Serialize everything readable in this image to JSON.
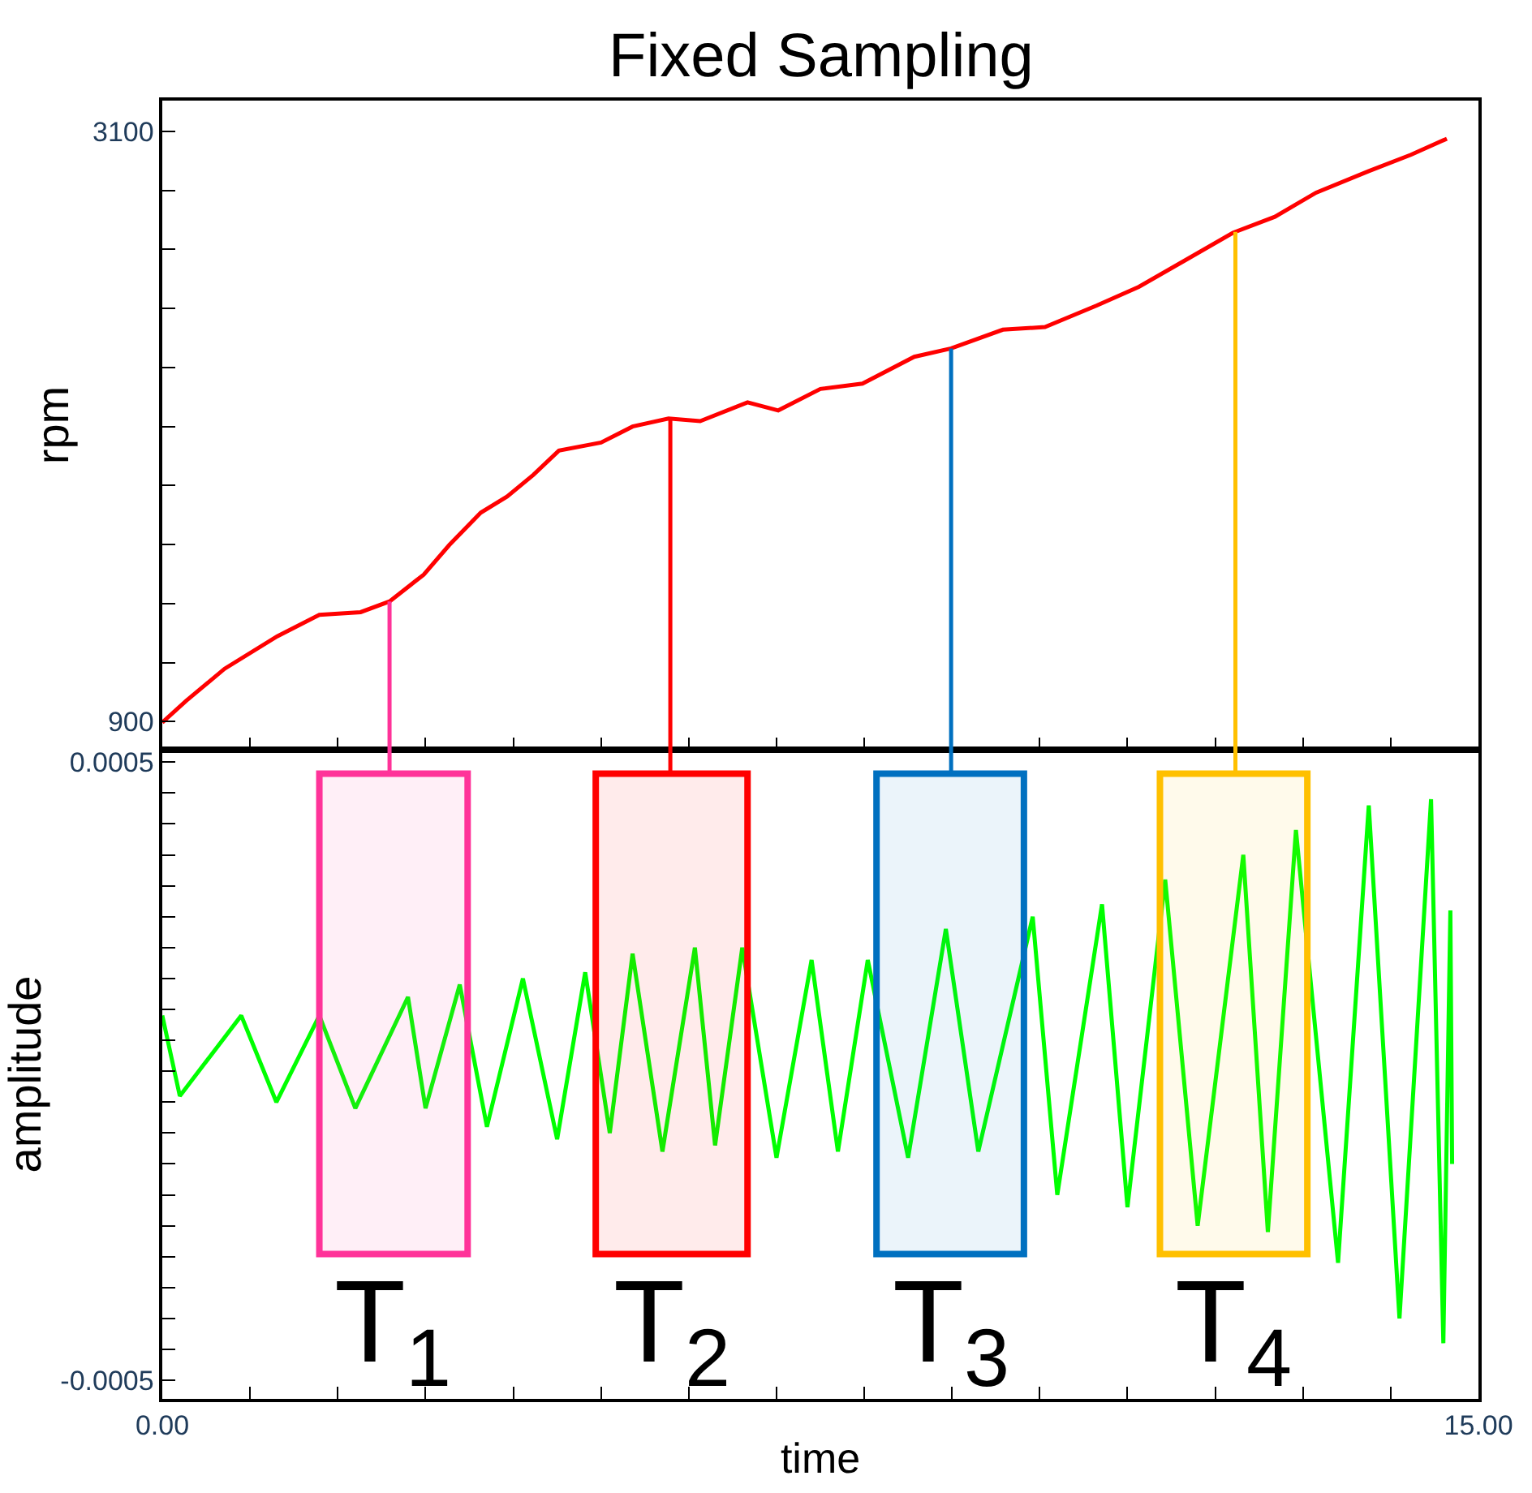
{
  "chart_data": [
    {
      "type": "line",
      "title": "Fixed Sampling",
      "ylabel": "rpm",
      "tick_labels": "y",
      "grid": false,
      "marker": "none",
      "line_style": "solid",
      "xlim": [
        0,
        15
      ],
      "xticks": [
        0,
        1,
        2,
        3,
        4,
        5,
        6,
        7,
        8,
        9,
        10,
        11,
        12,
        13,
        14,
        15
      ],
      "ylim": [
        795,
        3215
      ],
      "yticks": [
        900,
        {
          "value": 1120,
          "label": null
        },
        {
          "value": 1340,
          "label": null
        },
        {
          "value": 1560,
          "label": null
        },
        {
          "value": 1780,
          "label": null
        },
        {
          "value": 2000,
          "label": null
        },
        {
          "value": 2220,
          "label": null
        },
        {
          "value": 2440,
          "label": null
        },
        {
          "value": 2660,
          "label": null
        },
        {
          "value": 2880,
          "label": null
        },
        3100
      ],
      "series": [
        {
          "color": "#ff0000",
          "x": [
            0,
            0.27,
            0.71,
            1.31,
            1.79,
            2.26,
            2.59,
            2.98,
            3.27,
            3.63,
            3.93,
            4.23,
            4.52,
            5.0,
            5.36,
            5.77,
            6.13,
            6.67,
            7.02,
            7.5,
            7.98,
            8.57,
            8.99,
            9.58,
            10.06,
            10.65,
            11.13,
            11.67,
            12.2,
            12.68,
            13.15,
            13.75,
            14.23,
            14.64
          ],
          "values": [
            897,
            977,
            1097,
            1218,
            1298,
            1308,
            1348,
            1448,
            1558,
            1679,
            1739,
            1820,
            1910,
            1940,
            2000,
            2030,
            2020,
            2090,
            2060,
            2140,
            2160,
            2260,
            2291,
            2361,
            2371,
            2451,
            2521,
            2622,
            2722,
            2782,
            2872,
            2952,
            3013,
            3073
          ]
        }
      ],
      "ref_lines": [
        {
          "axis": "x",
          "value": 2.59,
          "color": "#ff3399"
        },
        {
          "axis": "x",
          "value": 5.79,
          "color": "#ff0000"
        },
        {
          "axis": "x",
          "value": 8.99,
          "color": "#0070c0"
        },
        {
          "axis": "x",
          "value": 12.23,
          "color": "#ffc000"
        }
      ]
    },
    {
      "type": "line",
      "xlabel": "time",
      "ylabel": "amplitude",
      "grid": false,
      "marker": "none",
      "line_style": "solid",
      "xlim": [
        0,
        15
      ],
      "xticks": [
        {
          "value": 0,
          "label": "0.00"
        },
        {
          "value": 1,
          "label": null
        },
        {
          "value": 2,
          "label": null
        },
        {
          "value": 3,
          "label": null
        },
        {
          "value": 4,
          "label": null
        },
        {
          "value": 5,
          "label": null
        },
        {
          "value": 6,
          "label": null
        },
        {
          "value": 7,
          "label": null
        },
        {
          "value": 8,
          "label": null
        },
        {
          "value": 9,
          "label": null
        },
        {
          "value": 10,
          "label": null
        },
        {
          "value": 11,
          "label": null
        },
        {
          "value": 12,
          "label": null
        },
        {
          "value": 13,
          "label": null
        },
        {
          "value": 14,
          "label": null
        },
        {
          "value": 15,
          "label": "15.00"
        }
      ],
      "ylim": [
        -0.00053,
        0.00052
      ],
      "yticks": [
        -0.0005,
        {
          "value": -0.00045,
          "label": null
        },
        {
          "value": -0.0004,
          "label": null
        },
        {
          "value": -0.00035,
          "label": null
        },
        {
          "value": -0.0003,
          "label": null
        },
        {
          "value": -0.00025,
          "label": null
        },
        {
          "value": -0.0002,
          "label": null
        },
        {
          "value": -0.00015,
          "label": null
        },
        {
          "value": -0.0001,
          "label": null
        },
        {
          "value": -5e-05,
          "label": null
        },
        {
          "value": 0,
          "label": null
        },
        {
          "value": 5e-05,
          "label": null
        },
        {
          "value": 0.0001,
          "label": null
        },
        {
          "value": 0.00015,
          "label": null
        },
        {
          "value": 0.0002,
          "label": null
        },
        {
          "value": 0.00025,
          "label": null
        },
        {
          "value": 0.0003,
          "label": null
        },
        {
          "value": 0.00035,
          "label": null
        },
        {
          "value": 0.0004,
          "label": null
        },
        {
          "value": 0.00045,
          "label": null
        },
        0.0005
      ],
      "series": [
        {
          "color": "#00ff00",
          "x": [
            0.0,
            0.2,
            0.9,
            1.3,
            1.79,
            2.2,
            2.8,
            3.0,
            3.39,
            3.7,
            4.11,
            4.5,
            4.82,
            5.1,
            5.36,
            5.7,
            6.07,
            6.3,
            6.61,
            7.0,
            7.4,
            7.7,
            8.04,
            8.5,
            8.93,
            9.3,
            9.92,
            10.2,
            10.71,
            11.0,
            11.43,
            11.8,
            12.32,
            12.6,
            12.92,
            13.4,
            13.75,
            14.1,
            14.46,
            14.6,
            14.68,
            14.7
          ],
          "values": [
            9e-05,
            -4e-05,
            9e-05,
            -5e-05,
            9e-05,
            -6e-05,
            0.00012,
            -6e-05,
            0.00014,
            -9e-05,
            0.00015,
            -0.00011,
            0.00016,
            -0.0001,
            0.00019,
            -0.00013,
            0.0002,
            -0.00012,
            0.0002,
            -0.00014,
            0.00018,
            -0.00013,
            0.00018,
            -0.00014,
            0.00023,
            -0.00013,
            0.00025,
            -0.0002,
            0.00027,
            -0.00022,
            0.00031,
            -0.00025,
            0.00035,
            -0.00026,
            0.00039,
            -0.00031,
            0.00043,
            -0.0004,
            0.00044,
            -0.00044,
            0.00026,
            -0.00015
          ]
        }
      ],
      "bands": [
        {
          "axis": "x",
          "from": 1.79,
          "to": 3.48,
          "label": "T$_{1}$",
          "color": "#ff3399"
        },
        {
          "axis": "x",
          "from": 4.94,
          "to": 6.67,
          "label": "T$_{2}$",
          "color": "#ff0000"
        },
        {
          "axis": "x",
          "from": 8.14,
          "to": 9.82,
          "label": "T$_{3}$",
          "color": "#0070c0"
        },
        {
          "axis": "x",
          "from": 11.37,
          "to": 13.05,
          "label": "T$_{4}$",
          "color": "#ffc000"
        }
      ]
    }
  ]
}
